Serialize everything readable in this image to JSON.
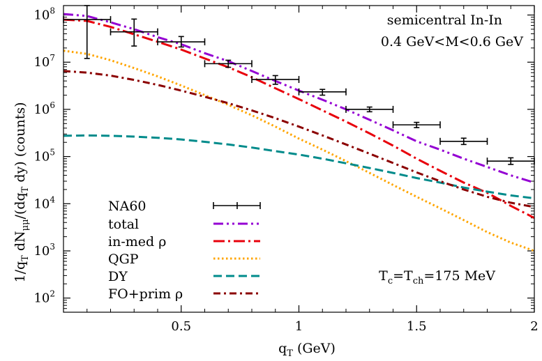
{
  "chart_data": {
    "type": "line",
    "xlabel": "q_T (GeV)",
    "ylabel": "1/q_T dN_μμ/(dq_T dy) (counts)",
    "xlim": [
      0,
      2
    ],
    "ylim_log10": [
      1.7,
      8.2
    ],
    "x_ticks": [
      {
        "value": 0.5,
        "label": "0.5"
      },
      {
        "value": 1,
        "label": "1"
      },
      {
        "value": 1.5,
        "label": "1.5"
      },
      {
        "value": 2,
        "label": "2"
      }
    ],
    "y_ticks": [
      {
        "exp": 2,
        "base": "10",
        "power": "2"
      },
      {
        "exp": 3,
        "base": "10",
        "power": "3"
      },
      {
        "exp": 4,
        "base": "10",
        "power": "4"
      },
      {
        "exp": 5,
        "base": "10",
        "power": "5"
      },
      {
        "exp": 6,
        "base": "10",
        "power": "6"
      },
      {
        "exp": 7,
        "base": "10",
        "power": "7"
      },
      {
        "exp": 8,
        "base": "10",
        "power": "8"
      }
    ],
    "annotations": {
      "system": "semicentral In-In",
      "mass_window": "0.4 GeV<M<0.6 GeV",
      "temperature_main": "T",
      "temperature_sub_c": "c",
      "temperature_eq": "=T",
      "temperature_sub_ch": "ch",
      "temperature_value": "=175 MeV"
    },
    "legend_position": "bottom-left",
    "data_points": {
      "name": "NA60",
      "x": [
        0.1,
        0.3,
        0.5,
        0.7,
        0.9,
        1.1,
        1.3,
        1.5,
        1.7,
        1.9
      ],
      "y": [
        80000000.0,
        44000000.0,
        27000000.0,
        9300000.0,
        4300000.0,
        2350000.0,
        1000000.0,
        470000.0,
        210000.0,
        80000.0
      ],
      "xerr": [
        0.1,
        0.1,
        0.1,
        0.1,
        0.1,
        0.1,
        0.1,
        0.1,
        0.1,
        0.1
      ],
      "y_low": [
        12000000.0,
        22000000.0,
        21000000.0,
        7800000.0,
        3400000.0,
        2000000.0,
        890000.0,
        410000.0,
        180000.0,
        68000.0
      ],
      "y_high": [
        170000000.0,
        82000000.0,
        35000000.0,
        11000000.0,
        5200000.0,
        2650000.0,
        1120000.0,
        530000.0,
        245000.0,
        94000.0
      ]
    },
    "series": [
      {
        "name": "total",
        "color": "#9400d3",
        "dash": "dashdotdot",
        "x": [
          0,
          0.1,
          0.2,
          0.3,
          0.4,
          0.5,
          0.6,
          0.7,
          0.8,
          0.9,
          1.0,
          1.1,
          1.2,
          1.3,
          1.4,
          1.5,
          1.6,
          1.7,
          1.8,
          1.9,
          2.0
        ],
        "y": [
          105000000.0,
          95000000.0,
          70000000.0,
          50000000.0,
          34000000.0,
          24000000.0,
          15500000.0,
          10500000.0,
          6500000.0,
          4000000.0,
          2500000.0,
          1600000.0,
          1000000.0,
          600000.0,
          360000.0,
          210000.0,
          140000.0,
          90000.0,
          60000.0,
          40000.0,
          28000.0
        ]
      },
      {
        "name": "in-med ρ",
        "color": "#e8000b",
        "dash": "dashdot",
        "x": [
          0,
          0.1,
          0.2,
          0.3,
          0.4,
          0.5,
          0.6,
          0.7,
          0.8,
          0.9,
          1.0,
          1.1,
          1.2,
          1.3,
          1.4,
          1.5,
          1.6,
          1.7,
          1.8,
          1.9,
          2.0
        ],
        "y": [
          80000000.0,
          75000000.0,
          56000000.0,
          39000000.0,
          27000000.0,
          18500000.0,
          12000000.0,
          7800000.0,
          4800000.0,
          2800000.0,
          1650000.0,
          950000.0,
          550000.0,
          310000.0,
          170000.0,
          90000.0,
          50000.0,
          28000.0,
          17000.0,
          9000.0,
          5000.0
        ]
      },
      {
        "name": "QGP",
        "color": "#ffa500",
        "dash": "dotted",
        "x": [
          0,
          0.1,
          0.2,
          0.3,
          0.4,
          0.5,
          0.6,
          0.7,
          0.8,
          0.9,
          1.0,
          1.1,
          1.2,
          1.3,
          1.4,
          1.5,
          1.6,
          1.7,
          1.8,
          1.9,
          2.0
        ],
        "y": [
          17500000.0,
          15000000.0,
          11000000.0,
          7500000.0,
          5000000.0,
          3200000.0,
          2000000.0,
          1250000.0,
          750000.0,
          430000.0,
          240000.0,
          140000.0,
          80000.0,
          45000.0,
          25000.0,
          14000.0,
          8000.0,
          4500.0,
          2500.0,
          1500.0,
          1000.0
        ]
      },
      {
        "name": "DY",
        "color": "#008b8b",
        "dash": "dashed",
        "x": [
          0,
          0.1,
          0.2,
          0.3,
          0.4,
          0.5,
          0.6,
          0.7,
          0.8,
          0.9,
          1.0,
          1.1,
          1.2,
          1.3,
          1.4,
          1.5,
          1.6,
          1.7,
          1.8,
          1.9,
          2.0
        ],
        "y": [
          275000.0,
          280000.0,
          275000.0,
          265000.0,
          250000.0,
          230000.0,
          205000.0,
          180000.0,
          155000.0,
          130000.0,
          110000.0,
          90000.0,
          72000.0,
          57000.0,
          45000.0,
          35000.0,
          28000.0,
          22000.0,
          18000.0,
          15000.0,
          13000.0
        ]
      },
      {
        "name": "FO+prim ρ",
        "color": "#8b0000",
        "dash": "dashdot",
        "x": [
          0,
          0.1,
          0.2,
          0.3,
          0.4,
          0.5,
          0.6,
          0.7,
          0.8,
          0.9,
          1.0,
          1.1,
          1.2,
          1.3,
          1.4,
          1.5,
          1.6,
          1.7,
          1.8,
          1.9,
          2.0
        ],
        "y": [
          6500000.0,
          6000000.0,
          5200000.0,
          4200000.0,
          3300000.0,
          2500000.0,
          1850000.0,
          1350000.0,
          950000.0,
          650000.0,
          430000.0,
          280000.0,
          180000.0,
          115000.0,
          73000.0,
          46000.0,
          30000.0,
          20000.0,
          14000.0,
          10500.0,
          8500.0
        ]
      }
    ]
  }
}
